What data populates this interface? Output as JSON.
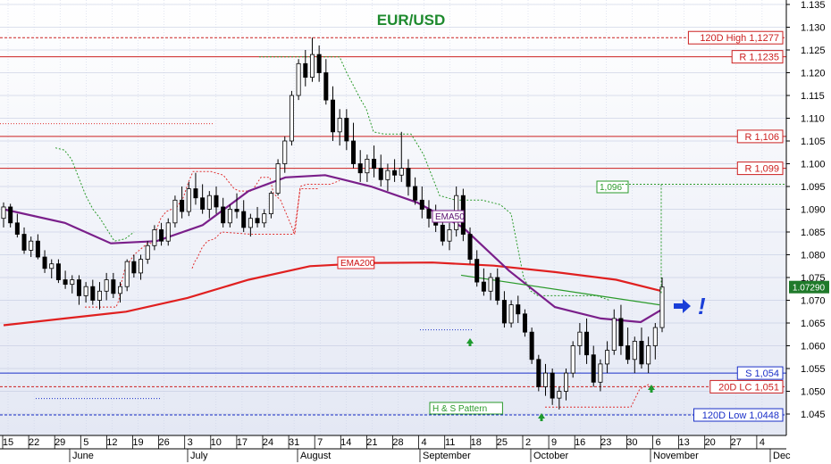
{
  "chart_data": {
    "type": "candlestick",
    "title": "EUR/USD",
    "ylim": [
      1.042,
      1.136
    ],
    "yticks": [
      "1.045",
      "1.050",
      "1.055",
      "1.060",
      "1.065",
      "1.070",
      "1.075",
      "1.080",
      "1.085",
      "1.090",
      "1.095",
      "1.100",
      "1.105",
      "1.110",
      "1.115",
      "1.120",
      "1.125",
      "1.130",
      "1.135"
    ],
    "x_day_ticks": [
      "15",
      "22",
      "29",
      "5",
      "12",
      "19",
      "26",
      "3",
      "10",
      "17",
      "24",
      "31",
      "7",
      "14",
      "21",
      "28",
      "4",
      "11",
      "18",
      "25",
      "2",
      "9",
      "16",
      "23",
      "30",
      "6",
      "13",
      "20",
      "27",
      "4"
    ],
    "months": [
      "June",
      "July",
      "August",
      "September",
      "October",
      "November",
      "Dec"
    ],
    "last_price": "1.07290",
    "levels": [
      {
        "label": "120D High 1,1277",
        "value": 1.1277,
        "color": "#cc2020",
        "style": "dotted"
      },
      {
        "label": "R 1,1235",
        "value": 1.1235,
        "color": "#cc2020",
        "style": "solid"
      },
      {
        "label": "R 1,106",
        "value": 1.106,
        "color": "#cc2020",
        "style": "solid"
      },
      {
        "label": "R 1,099",
        "value": 1.099,
        "color": "#cc2020",
        "style": "solid"
      },
      {
        "label": "S 1,054",
        "value": 1.054,
        "color": "#1a2fc8",
        "style": "solid"
      },
      {
        "label": "20D LC 1,051",
        "value": 1.051,
        "color": "#cc2020",
        "style": "dotted"
      },
      {
        "label": "120D Low 1,0448",
        "value": 1.0448,
        "color": "#1a2fc8",
        "style": "dotted"
      }
    ],
    "annotations": {
      "ema50": "EMA50",
      "ema200": "EMA200",
      "hs_pattern": "H & S Pattern",
      "target": "1,096",
      "exclamation": "!"
    },
    "colors": {
      "ema50": "#7a1f8a",
      "ema200": "#e02020",
      "trendline": "#2a9a2a",
      "candle_up": "#ffffff",
      "candle_down": "#000000",
      "arrow_green": "#1e9a2e",
      "arrow_blue": "#1a3fd8"
    },
    "ema200": [
      [
        0,
        1.0645
      ],
      [
        20,
        1.066
      ],
      [
        40,
        1.0675
      ],
      [
        60,
        1.0705
      ],
      [
        80,
        1.0745
      ],
      [
        100,
        1.0775
      ],
      [
        120,
        1.0782
      ],
      [
        140,
        1.0783
      ],
      [
        160,
        1.0776
      ],
      [
        180,
        1.0762
      ],
      [
        200,
        1.0745
      ],
      [
        215,
        1.072
      ]
    ],
    "ema50": [
      [
        0,
        1.09
      ],
      [
        20,
        1.087
      ],
      [
        35,
        1.0825
      ],
      [
        50,
        1.083
      ],
      [
        65,
        1.0865
      ],
      [
        80,
        1.094
      ],
      [
        92,
        1.097
      ],
      [
        105,
        1.0975
      ],
      [
        120,
        1.095
      ],
      [
        135,
        1.0915
      ],
      [
        150,
        1.086
      ],
      [
        165,
        1.0765
      ],
      [
        180,
        1.0685
      ],
      [
        195,
        1.066
      ],
      [
        208,
        1.0652
      ],
      [
        215,
        1.068
      ]
    ],
    "candles": [
      [
        1.088,
        1.0915,
        1.086,
        1.0905
      ],
      [
        1.0905,
        1.0912,
        1.086,
        1.087
      ],
      [
        1.087,
        1.089,
        1.0838,
        1.0845
      ],
      [
        1.0845,
        1.086,
        1.0802,
        1.081
      ],
      [
        1.081,
        1.084,
        1.0795,
        1.083
      ],
      [
        1.083,
        1.0845,
        1.079,
        1.0795
      ],
      [
        1.0795,
        1.081,
        1.076,
        1.077
      ],
      [
        1.077,
        1.079,
        1.0748,
        1.078
      ],
      [
        1.078,
        1.079,
        1.0738,
        1.0745
      ],
      [
        1.0745,
        1.0765,
        1.0725,
        1.0735
      ],
      [
        1.0735,
        1.0755,
        1.0715,
        1.0745
      ],
      [
        1.0745,
        1.0755,
        1.069,
        1.071
      ],
      [
        1.071,
        1.074,
        1.0695,
        1.073
      ],
      [
        1.073,
        1.0745,
        1.069,
        1.07
      ],
      [
        1.07,
        1.074,
        1.068,
        1.072
      ],
      [
        1.072,
        1.076,
        1.07,
        1.0745
      ],
      [
        1.0745,
        1.076,
        1.0705,
        1.0715
      ],
      [
        1.0715,
        1.074,
        1.0695,
        1.073
      ],
      [
        1.073,
        1.079,
        1.072,
        1.0785
      ],
      [
        1.0785,
        1.08,
        1.075,
        1.076
      ],
      [
        1.076,
        1.08,
        1.0745,
        1.079
      ],
      [
        1.079,
        1.083,
        1.078,
        1.082
      ],
      [
        1.082,
        1.0865,
        1.081,
        1.0855
      ],
      [
        1.0855,
        1.087,
        1.082,
        1.083
      ],
      [
        1.083,
        1.088,
        1.082,
        1.087
      ],
      [
        1.087,
        1.093,
        1.086,
        1.092
      ],
      [
        1.092,
        1.095,
        1.088,
        1.0895
      ],
      [
        1.0895,
        1.096,
        1.0885,
        1.0945
      ],
      [
        1.0945,
        1.098,
        1.091,
        1.0925
      ],
      [
        1.0925,
        1.0955,
        1.089,
        1.09
      ],
      [
        1.09,
        1.094,
        1.088,
        1.093
      ],
      [
        1.093,
        1.095,
        1.089,
        1.0905
      ],
      [
        1.0905,
        1.0925,
        1.086,
        1.087
      ],
      [
        1.087,
        1.091,
        1.086,
        1.09
      ],
      [
        1.09,
        1.0935,
        1.088,
        1.0895
      ],
      [
        1.0895,
        1.092,
        1.085,
        1.086
      ],
      [
        1.086,
        1.089,
        1.084,
        1.088
      ],
      [
        1.088,
        1.0905,
        1.086,
        1.087
      ],
      [
        1.087,
        1.09,
        1.086,
        1.089
      ],
      [
        1.089,
        1.094,
        1.088,
        1.0935
      ],
      [
        1.0935,
        1.101,
        1.093,
        1.1
      ],
      [
        1.1,
        1.106,
        1.098,
        1.105
      ],
      [
        1.105,
        1.116,
        1.104,
        1.115
      ],
      [
        1.115,
        1.123,
        1.114,
        1.122
      ],
      [
        1.122,
        1.125,
        1.117,
        1.119
      ],
      [
        1.119,
        1.1277,
        1.118,
        1.124
      ],
      [
        1.124,
        1.126,
        1.118,
        1.12
      ],
      [
        1.12,
        1.123,
        1.113,
        1.114
      ],
      [
        1.114,
        1.117,
        1.105,
        1.107
      ],
      [
        1.107,
        1.112,
        1.104,
        1.11
      ],
      [
        1.11,
        1.112,
        1.103,
        1.105
      ],
      [
        1.105,
        1.109,
        1.099,
        1.1
      ],
      [
        1.1,
        1.103,
        1.096,
        1.098
      ],
      [
        1.098,
        1.102,
        1.096,
        1.101
      ],
      [
        1.101,
        1.104,
        1.097,
        1.099
      ],
      [
        1.099,
        1.102,
        1.095,
        1.0965
      ],
      [
        1.0965,
        1.1,
        1.094,
        1.0985
      ],
      [
        1.0985,
        1.101,
        1.096,
        1.0975
      ],
      [
        1.0975,
        1.107,
        1.096,
        1.099
      ],
      [
        1.099,
        1.101,
        1.093,
        1.095
      ],
      [
        1.095,
        1.097,
        1.091,
        1.092
      ],
      [
        1.092,
        1.095,
        1.088,
        1.09
      ],
      [
        1.09,
        1.092,
        1.086,
        1.088
      ],
      [
        1.088,
        1.091,
        1.085,
        1.0865
      ],
      [
        1.0865,
        1.089,
        1.082,
        1.083
      ],
      [
        1.083,
        1.087,
        1.081,
        1.0855
      ],
      [
        1.0855,
        1.095,
        1.084,
        1.093
      ],
      [
        1.093,
        1.0945,
        1.083,
        1.0845
      ],
      [
        1.0845,
        1.086,
        1.078,
        1.079
      ],
      [
        1.079,
        1.081,
        1.073,
        1.074
      ],
      [
        1.074,
        1.077,
        1.071,
        1.072
      ],
      [
        1.072,
        1.076,
        1.07,
        1.075
      ],
      [
        1.075,
        1.077,
        1.069,
        1.07
      ],
      [
        1.07,
        1.072,
        1.064,
        1.065
      ],
      [
        1.065,
        1.07,
        1.064,
        1.069
      ],
      [
        1.069,
        1.071,
        1.065,
        1.067
      ],
      [
        1.067,
        1.068,
        1.062,
        1.063
      ],
      [
        1.063,
        1.064,
        1.056,
        1.057
      ],
      [
        1.057,
        1.058,
        1.05,
        1.051
      ],
      [
        1.051,
        1.056,
        1.049,
        1.054
      ],
      [
        1.054,
        1.055,
        1.047,
        1.0485
      ],
      [
        1.0485,
        1.051,
        1.046,
        1.05
      ],
      [
        1.05,
        1.055,
        1.048,
        1.054
      ],
      [
        1.054,
        1.061,
        1.053,
        1.06
      ],
      [
        1.06,
        1.065,
        1.058,
        1.063
      ],
      [
        1.063,
        1.066,
        1.056,
        1.058
      ],
      [
        1.058,
        1.06,
        1.051,
        1.052
      ],
      [
        1.052,
        1.057,
        1.05,
        1.056
      ],
      [
        1.056,
        1.061,
        1.054,
        1.059
      ],
      [
        1.059,
        1.068,
        1.058,
        1.066
      ],
      [
        1.066,
        1.069,
        1.058,
        1.06
      ],
      [
        1.06,
        1.064,
        1.056,
        1.057
      ],
      [
        1.057,
        1.062,
        1.054,
        1.061
      ],
      [
        1.061,
        1.064,
        1.055,
        1.056
      ],
      [
        1.056,
        1.062,
        1.054,
        1.06
      ],
      [
        1.06,
        1.065,
        1.057,
        1.064
      ],
      [
        1.064,
        1.075,
        1.063,
        1.0729
      ]
    ]
  }
}
